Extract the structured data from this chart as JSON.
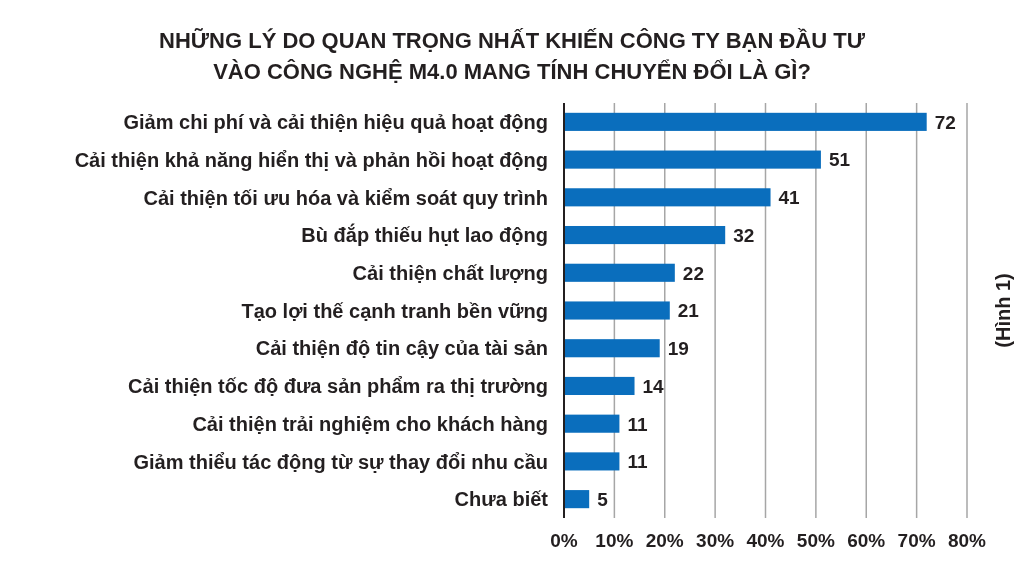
{
  "chart_data": {
    "type": "bar",
    "orientation": "horizontal",
    "title": "NHỮNG LÝ DO QUAN TRỌNG NHẤT KHIẾN CÔNG TY BẠN ĐẦU TƯ VÀO CÔNG NGHỆ M4.0 MANG TÍNH CHUYỂN ĐỔI LÀ GÌ?",
    "categories": [
      "Giảm chi phí và cải thiện hiệu quả hoạt động",
      "Cải thiện khả năng hiển thị và phản hồi hoạt động",
      "Cải thiện tối ưu hóa và kiểm soát quy trình",
      "Bù đắp thiếu hụt lao động",
      "Cải thiện chất lượng",
      "Tạo lợi thế cạnh tranh bền vững",
      "Cải thiện độ tin cậy của tài sản",
      "Cải thiện tốc độ đưa sản phẩm ra thị trường",
      "Cải thiện trải nghiệm cho khách hàng",
      "Giảm thiểu tác động từ sự thay đổi nhu cầu",
      "Chưa biết"
    ],
    "values": [
      72,
      51,
      41,
      32,
      22,
      21,
      19,
      14,
      11,
      11,
      5
    ],
    "color": "#0a6ebd",
    "xlim": [
      0,
      80
    ],
    "xticks": [
      {
        "value": 0,
        "label": "0%"
      },
      {
        "value": 10,
        "label": "10%"
      },
      {
        "value": 20,
        "label": "20%"
      },
      {
        "value": 30,
        "label": "30%"
      },
      {
        "value": 40,
        "label": "40%"
      },
      {
        "value": 50,
        "label": "50%"
      },
      {
        "value": 60,
        "label": "60%"
      },
      {
        "value": 70,
        "label": "70%"
      },
      {
        "value": 80,
        "label": "80%"
      }
    ],
    "grid": "x",
    "data_labels": true,
    "annotations": [
      "(Hình 1)"
    ]
  }
}
